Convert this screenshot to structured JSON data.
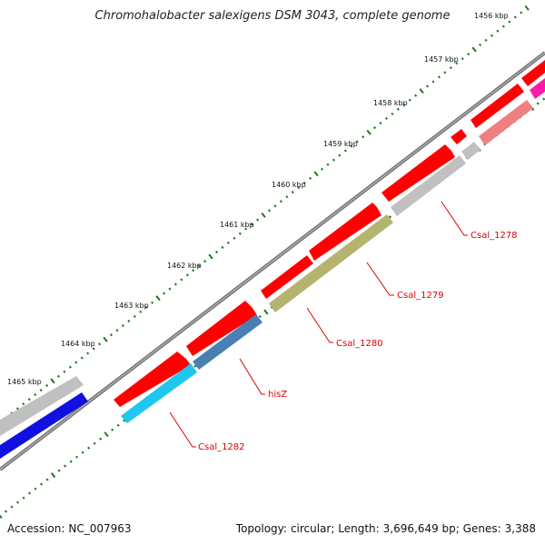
{
  "title": "Chromohalobacter salexigens DSM 3043, complete genome",
  "footer": {
    "accession_label": "Accession:",
    "accession": "NC_007963",
    "topology_label": "Topology:",
    "topology": "circular;",
    "length_label": "Length:",
    "length": "3,696,649 bp;",
    "genes_label": "Genes:",
    "genes": "3,388"
  },
  "ruler": {
    "tick_labels": [
      "1456 kbp",
      "1457 kbp",
      "1458 kbp",
      "1459 kbp",
      "1460 kbp",
      "1461 kbp",
      "1462 kbp",
      "1463 kbp",
      "1464 kbp",
      "1465 kbp"
    ]
  },
  "colors": {
    "backbone": "#7a7a7a",
    "tick_minor": "#1a7a1a",
    "gene_label": "#dd0000",
    "cds_red": "#ff0000",
    "cds_grey": "#c0c0c0",
    "cds_olive": "#b4b46e",
    "cds_steelblue": "#4a7fb4",
    "cds_cyan": "#1fc6f0",
    "cds_blue": "#1010e0",
    "cds_pink": "#f08080",
    "cds_magenta": "#ff1aa8"
  },
  "gene_labels": [
    {
      "text": "Csal_1278"
    },
    {
      "text": "Csal_1279"
    },
    {
      "text": "Csal_1280"
    },
    {
      "text": "hisZ"
    },
    {
      "text": "Csal_1282"
    }
  ]
}
